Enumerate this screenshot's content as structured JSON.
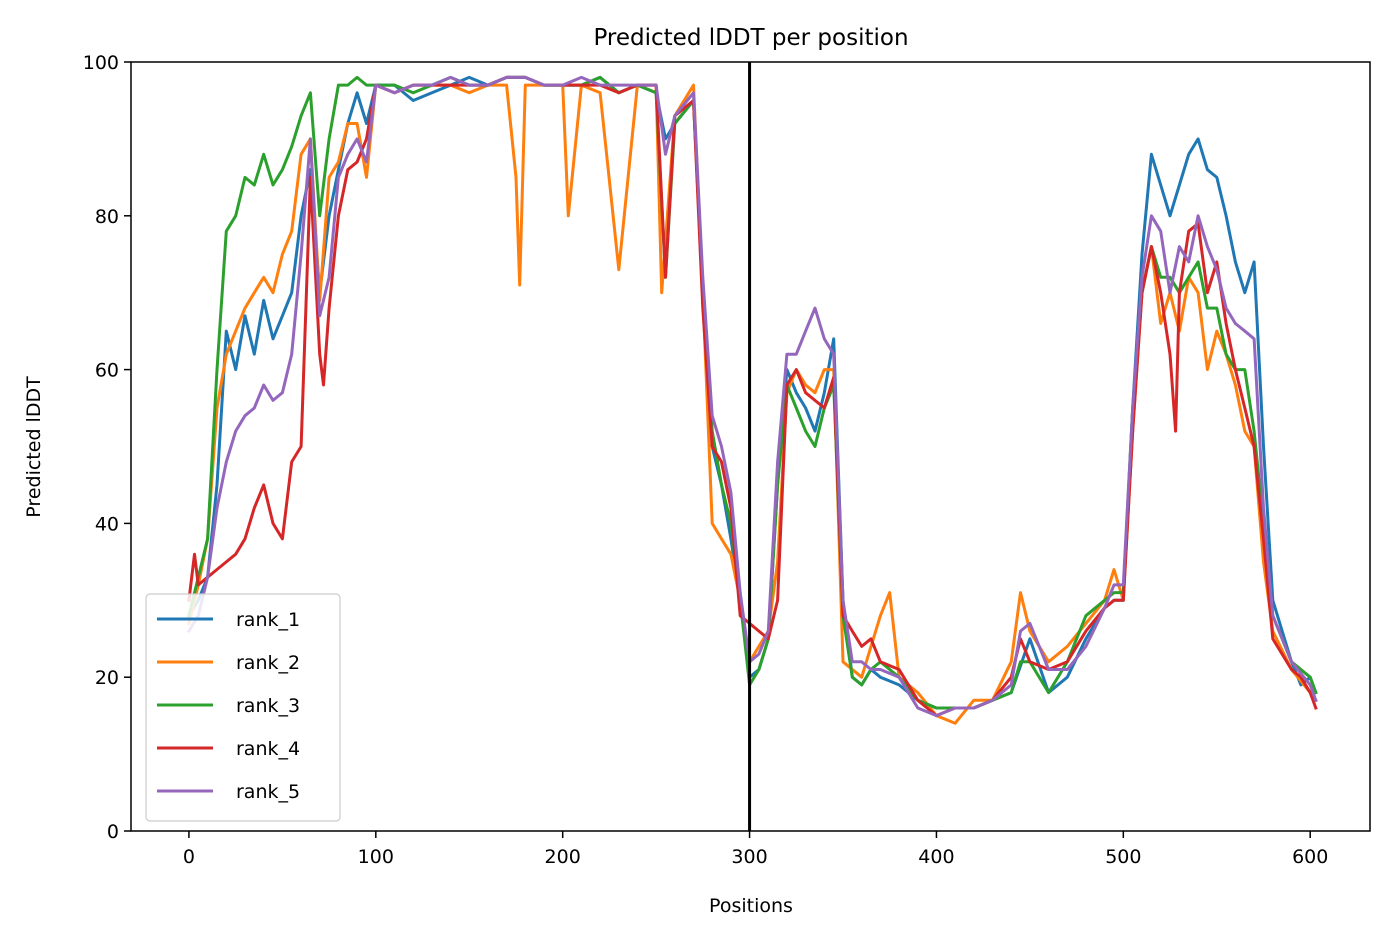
{
  "chart_data": {
    "type": "line",
    "title": "Predicted lDDT per position",
    "xlabel": "Positions",
    "ylabel": "Predicted lDDT",
    "xlim": [
      -31,
      632
    ],
    "ylim": [
      0,
      100
    ],
    "xticks": [
      0,
      100,
      200,
      300,
      400,
      500,
      600
    ],
    "yticks": [
      0,
      20,
      40,
      60,
      80,
      100
    ],
    "grid": false,
    "legend_position": "lower left",
    "vline": {
      "x": 300,
      "color": "#000000"
    },
    "series": [
      {
        "name": "rank_1",
        "color": "#1f77b4",
        "x": [
          0,
          5,
          10,
          15,
          20,
          25,
          30,
          35,
          40,
          45,
          50,
          55,
          60,
          65,
          70,
          75,
          80,
          85,
          90,
          95,
          100,
          110,
          120,
          130,
          140,
          150,
          160,
          170,
          180,
          190,
          200,
          210,
          220,
          230,
          240,
          250,
          255,
          260,
          270,
          275,
          280,
          285,
          290,
          295,
          300,
          305,
          310,
          315,
          320,
          325,
          330,
          335,
          340,
          345,
          350,
          355,
          360,
          365,
          370,
          380,
          390,
          400,
          410,
          420,
          430,
          440,
          450,
          460,
          470,
          480,
          490,
          495,
          500,
          505,
          510,
          515,
          520,
          525,
          530,
          535,
          540,
          545,
          550,
          555,
          560,
          565,
          570,
          575,
          580,
          590,
          595,
          600,
          603
        ],
        "y": [
          28,
          30,
          33,
          45,
          65,
          60,
          67,
          62,
          69,
          64,
          67,
          70,
          80,
          86,
          70,
          80,
          86,
          92,
          96,
          92,
          97,
          97,
          95,
          96,
          97,
          98,
          97,
          98,
          98,
          97,
          97,
          97,
          98,
          96,
          97,
          96,
          90,
          92,
          95,
          70,
          50,
          45,
          38,
          30,
          20,
          21,
          25,
          45,
          60,
          57,
          55,
          52,
          57,
          64,
          30,
          20,
          19,
          21,
          20,
          19,
          17,
          16,
          16,
          16,
          17,
          18,
          25,
          18,
          20,
          25,
          29,
          30,
          30,
          55,
          75,
          88,
          84,
          80,
          84,
          88,
          90,
          86,
          85,
          80,
          74,
          70,
          74,
          50,
          30,
          22,
          19,
          20,
          18
        ]
      },
      {
        "name": "rank_2",
        "color": "#ff7f0e",
        "x": [
          0,
          5,
          10,
          15,
          20,
          25,
          30,
          35,
          40,
          45,
          50,
          55,
          60,
          65,
          70,
          75,
          80,
          85,
          90,
          95,
          100,
          110,
          120,
          130,
          140,
          150,
          160,
          170,
          175,
          177,
          180,
          190,
          200,
          203,
          210,
          220,
          230,
          240,
          250,
          253,
          260,
          270,
          275,
          280,
          285,
          290,
          295,
          300,
          305,
          310,
          315,
          320,
          325,
          330,
          335,
          340,
          345,
          350,
          360,
          365,
          370,
          375,
          380,
          390,
          400,
          410,
          420,
          430,
          440,
          445,
          450,
          460,
          470,
          480,
          490,
          495,
          500,
          505,
          510,
          515,
          520,
          525,
          530,
          535,
          540,
          545,
          550,
          555,
          560,
          565,
          570,
          575,
          580,
          590,
          600,
          603
        ],
        "y": [
          27,
          32,
          38,
          55,
          62,
          65,
          68,
          70,
          72,
          70,
          75,
          78,
          88,
          90,
          69,
          85,
          87,
          92,
          92,
          85,
          97,
          96,
          97,
          97,
          97,
          96,
          97,
          97,
          85,
          71,
          97,
          97,
          97,
          80,
          97,
          96,
          73,
          97,
          97,
          70,
          93,
          97,
          70,
          40,
          38,
          36,
          30,
          22,
          24,
          26,
          35,
          57,
          60,
          58,
          57,
          60,
          60,
          22,
          20,
          24,
          28,
          31,
          20,
          18,
          15,
          14,
          17,
          17,
          22,
          31,
          26,
          22,
          24,
          27,
          30,
          34,
          30,
          52,
          70,
          76,
          66,
          70,
          65,
          72,
          70,
          60,
          65,
          62,
          58,
          52,
          50,
          35,
          26,
          21,
          18,
          17
        ]
      },
      {
        "name": "rank_3",
        "color": "#2ca02c",
        "x": [
          0,
          5,
          10,
          15,
          20,
          25,
          30,
          35,
          40,
          45,
          50,
          55,
          60,
          65,
          70,
          75,
          80,
          85,
          90,
          95,
          100,
          110,
          120,
          130,
          140,
          150,
          160,
          170,
          180,
          190,
          200,
          210,
          220,
          230,
          240,
          250,
          255,
          260,
          270,
          275,
          280,
          285,
          290,
          295,
          300,
          305,
          310,
          315,
          320,
          325,
          330,
          335,
          340,
          345,
          350,
          355,
          360,
          365,
          370,
          380,
          390,
          400,
          410,
          420,
          430,
          440,
          445,
          450,
          460,
          470,
          480,
          490,
          495,
          500,
          505,
          510,
          515,
          520,
          525,
          530,
          535,
          540,
          545,
          550,
          555,
          560,
          565,
          570,
          575,
          580,
          590,
          600,
          603
        ],
        "y": [
          28,
          33,
          38,
          60,
          78,
          80,
          85,
          84,
          88,
          84,
          86,
          89,
          93,
          96,
          80,
          90,
          97,
          97,
          98,
          97,
          97,
          97,
          96,
          97,
          98,
          97,
          97,
          98,
          98,
          97,
          97,
          97,
          98,
          96,
          97,
          96,
          72,
          92,
          95,
          70,
          52,
          45,
          40,
          30,
          19,
          21,
          25,
          45,
          58,
          55,
          52,
          50,
          55,
          58,
          28,
          20,
          19,
          21,
          22,
          20,
          17,
          16,
          16,
          16,
          17,
          18,
          22,
          22,
          18,
          22,
          28,
          30,
          31,
          31,
          55,
          70,
          76,
          72,
          72,
          70,
          72,
          74,
          68,
          68,
          62,
          60,
          60,
          52,
          40,
          28,
          22,
          20,
          18
        ]
      },
      {
        "name": "rank_4",
        "color": "#d62728",
        "x": [
          0,
          3,
          5,
          10,
          15,
          20,
          25,
          30,
          35,
          40,
          45,
          50,
          55,
          60,
          65,
          70,
          72,
          75,
          80,
          85,
          90,
          95,
          100,
          110,
          120,
          130,
          140,
          150,
          160,
          170,
          180,
          190,
          200,
          210,
          220,
          230,
          240,
          250,
          255,
          260,
          270,
          275,
          280,
          285,
          290,
          295,
          300,
          305,
          310,
          315,
          320,
          325,
          330,
          335,
          340,
          345,
          350,
          355,
          360,
          365,
          370,
          380,
          390,
          400,
          410,
          420,
          430,
          440,
          445,
          450,
          460,
          470,
          480,
          490,
          495,
          500,
          505,
          510,
          515,
          520,
          525,
          528,
          530,
          535,
          540,
          545,
          550,
          555,
          560,
          565,
          570,
          575,
          580,
          590,
          595,
          600,
          603
        ],
        "y": [
          30,
          36,
          32,
          33,
          34,
          35,
          36,
          38,
          42,
          45,
          40,
          38,
          48,
          50,
          85,
          62,
          58,
          68,
          80,
          86,
          87,
          90,
          97,
          96,
          97,
          97,
          97,
          97,
          97,
          98,
          98,
          97,
          97,
          97,
          97,
          96,
          97,
          97,
          72,
          93,
          95,
          68,
          50,
          48,
          42,
          28,
          27,
          26,
          25,
          30,
          58,
          60,
          57,
          56,
          55,
          59,
          28,
          26,
          24,
          25,
          22,
          21,
          17,
          15,
          16,
          16,
          17,
          20,
          25,
          22,
          21,
          22,
          26,
          29,
          30,
          30,
          52,
          70,
          76,
          70,
          62,
          52,
          70,
          78,
          79,
          70,
          74,
          66,
          60,
          55,
          50,
          38,
          25,
          21,
          20,
          18,
          16
        ]
      },
      {
        "name": "rank_5",
        "color": "#9467bd",
        "x": [
          0,
          5,
          10,
          15,
          20,
          25,
          30,
          35,
          40,
          45,
          50,
          55,
          60,
          65,
          70,
          75,
          80,
          85,
          90,
          95,
          100,
          110,
          120,
          130,
          140,
          150,
          160,
          170,
          180,
          190,
          200,
          210,
          220,
          230,
          240,
          250,
          255,
          260,
          270,
          275,
          280,
          285,
          290,
          295,
          300,
          305,
          310,
          315,
          320,
          325,
          330,
          335,
          340,
          345,
          350,
          355,
          360,
          365,
          370,
          380,
          390,
          400,
          410,
          420,
          430,
          440,
          445,
          450,
          460,
          470,
          480,
          490,
          495,
          500,
          505,
          510,
          515,
          520,
          525,
          530,
          535,
          540,
          545,
          550,
          555,
          560,
          565,
          570,
          575,
          580,
          590,
          600,
          603
        ],
        "y": [
          26,
          28,
          33,
          42,
          48,
          52,
          54,
          55,
          58,
          56,
          57,
          62,
          75,
          90,
          67,
          72,
          85,
          88,
          90,
          87,
          97,
          96,
          97,
          97,
          98,
          97,
          97,
          98,
          98,
          97,
          97,
          98,
          97,
          97,
          97,
          97,
          88,
          93,
          96,
          72,
          54,
          50,
          44,
          31,
          22,
          23,
          26,
          48,
          62,
          62,
          65,
          68,
          64,
          62,
          30,
          22,
          22,
          21,
          21,
          20,
          16,
          15,
          16,
          16,
          17,
          19,
          26,
          27,
          21,
          21,
          24,
          29,
          32,
          32,
          55,
          72,
          80,
          78,
          70,
          76,
          74,
          80,
          76,
          73,
          68,
          66,
          65,
          64,
          42,
          28,
          22,
          19,
          17
        ]
      }
    ]
  }
}
